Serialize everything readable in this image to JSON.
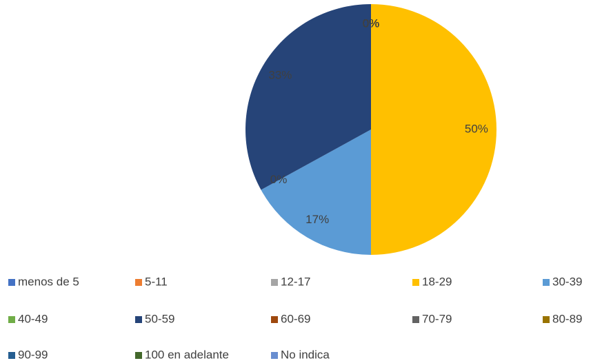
{
  "chart_data": {
    "type": "pie",
    "categories": [
      "menos de 5",
      "5-11",
      "12-17",
      "18-29",
      "30-39",
      "40-49",
      "50-59",
      "60-69",
      "70-79",
      "80-89",
      "90-99",
      "100 en adelante",
      "No indica"
    ],
    "values": [
      0,
      0,
      0,
      50,
      17,
      0,
      33,
      0,
      0,
      0,
      0,
      0,
      0
    ],
    "value_labels": [
      "0%",
      "0%",
      "0%",
      "50%",
      "17%",
      "0%",
      "33%",
      "0%",
      "0%",
      "0%",
      "0%",
      "0%",
      "0%"
    ],
    "colors": [
      "#4472c4",
      "#ed7d31",
      "#a5a5a5",
      "#ffc000",
      "#5b9bd5",
      "#70ad47",
      "#264478",
      "#9e480e",
      "#636363",
      "#997300",
      "#255e91",
      "#43682b",
      "#698ed0"
    ],
    "legend": "bottom"
  }
}
